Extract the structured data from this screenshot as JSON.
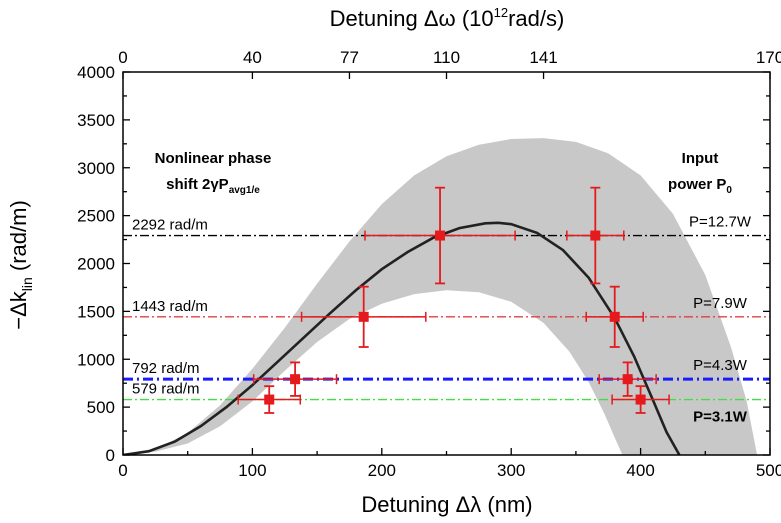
{
  "chart_data": {
    "type": "scatter",
    "xlabel_prefix": "Detuning ",
    "xlabel_symbol": "Δλ",
    "xlabel_unit": " (nm)",
    "top_xlabel_prefix": "Detuning ",
    "top_xlabel_symbol": "Δω",
    "top_xlabel_unit_start": " (10",
    "top_xlabel_unit_sup": "12",
    "top_xlabel_unit_end": "rad/s)",
    "ylabel_main": "−Δk",
    "ylabel_sub": "lin",
    "ylabel_unit": " (rad/m)",
    "xlim": [
      0,
      500
    ],
    "ylim": [
      0,
      4000
    ],
    "x_ticks": [
      0,
      100,
      200,
      300,
      400,
      500
    ],
    "y_ticks": [
      0,
      500,
      1000,
      1500,
      2000,
      2500,
      3000,
      3500,
      4000
    ],
    "top_ticks": [
      {
        "lambda": 0,
        "label": "0"
      },
      {
        "lambda": 100,
        "label": "40"
      },
      {
        "lambda": 175,
        "label": "77"
      },
      {
        "lambda": 250,
        "label": "110"
      },
      {
        "lambda": 325,
        "label": "141"
      },
      {
        "lambda": 500,
        "label": "170"
      }
    ],
    "theory_curve": [
      [
        0,
        0
      ],
      [
        20,
        40
      ],
      [
        40,
        140
      ],
      [
        60,
        300
      ],
      [
        80,
        500
      ],
      [
        100,
        730
      ],
      [
        120,
        980
      ],
      [
        140,
        1230
      ],
      [
        160,
        1480
      ],
      [
        180,
        1720
      ],
      [
        200,
        1940
      ],
      [
        220,
        2120
      ],
      [
        240,
        2270
      ],
      [
        260,
        2370
      ],
      [
        280,
        2420
      ],
      [
        290,
        2425
      ],
      [
        300,
        2410
      ],
      [
        320,
        2320
      ],
      [
        340,
        2140
      ],
      [
        360,
        1850
      ],
      [
        380,
        1430
      ],
      [
        395,
        1030
      ],
      [
        410,
        560
      ],
      [
        420,
        240
      ],
      [
        430,
        0
      ]
    ],
    "band_upper": [
      [
        0,
        0
      ],
      [
        25,
        60
      ],
      [
        50,
        230
      ],
      [
        75,
        520
      ],
      [
        100,
        900
      ],
      [
        125,
        1330
      ],
      [
        150,
        1790
      ],
      [
        175,
        2230
      ],
      [
        200,
        2620
      ],
      [
        225,
        2920
      ],
      [
        250,
        3120
      ],
      [
        275,
        3240
      ],
      [
        300,
        3300
      ],
      [
        325,
        3310
      ],
      [
        350,
        3270
      ],
      [
        375,
        3150
      ],
      [
        400,
        2920
      ],
      [
        425,
        2520
      ],
      [
        450,
        1880
      ],
      [
        470,
        1120
      ],
      [
        482,
        560
      ],
      [
        490,
        0
      ]
    ],
    "band_lower": [
      [
        0,
        0
      ],
      [
        25,
        35
      ],
      [
        50,
        120
      ],
      [
        75,
        300
      ],
      [
        100,
        560
      ],
      [
        125,
        880
      ],
      [
        150,
        1180
      ],
      [
        175,
        1420
      ],
      [
        200,
        1580
      ],
      [
        225,
        1680
      ],
      [
        250,
        1720
      ],
      [
        275,
        1700
      ],
      [
        300,
        1600
      ],
      [
        325,
        1380
      ],
      [
        345,
        1080
      ],
      [
        360,
        760
      ],
      [
        372,
        430
      ],
      [
        382,
        120
      ],
      [
        386,
        0
      ]
    ],
    "series": [
      {
        "x": 113,
        "y": 579,
        "xerr": 24,
        "yerr": 140
      },
      {
        "x": 133,
        "y": 792,
        "xerr": 32,
        "yerr": 175
      },
      {
        "x": 186,
        "y": 1443,
        "xerr": 48,
        "yerr": 315
      },
      {
        "x": 245,
        "y": 2292,
        "xerr": 58,
        "yerr": 500
      },
      {
        "x": 365,
        "y": 2292,
        "xerr": 22,
        "yerr": 500
      },
      {
        "x": 380,
        "y": 1443,
        "xerr": 22,
        "yerr": 315
      },
      {
        "x": 390,
        "y": 792,
        "xerr": 22,
        "yerr": 175
      },
      {
        "x": 400,
        "y": 579,
        "xerr": 22,
        "yerr": 140
      }
    ],
    "hlines": [
      {
        "y": 2292,
        "color": "#000000",
        "width": 1.3,
        "dash": "9,3,2,3",
        "value_label": "2292 rad/m",
        "power_label": "P=12.7W",
        "power_bold": false
      },
      {
        "y": 1443,
        "color": "#e04040",
        "width": 1.3,
        "dash": "9,3,2,3",
        "value_label": "1443 rad/m",
        "power_label": "P=7.9W",
        "power_bold": false
      },
      {
        "y": 792,
        "color": "#1a1aff",
        "width": 3,
        "dash": "10,4,2,4",
        "value_label": "792 rad/m",
        "power_label": "P=4.3W",
        "power_bold": false
      },
      {
        "y": 579,
        "color": "#44dd44",
        "width": 1.3,
        "dash": "9,3,2,3",
        "value_label": "579 rad/m",
        "power_label": "P=3.1W",
        "power_bold": true
      }
    ],
    "annotations": {
      "left_title_line1": "Nonlinear phase",
      "left_title_line2_main": "shift 2γP",
      "left_title_line2_sub": "avg1/e",
      "right_title_line1": "Input",
      "right_title_line2_main": "power P",
      "right_title_line2_sub": "0"
    },
    "colors": {
      "band": "#c8c8c8",
      "curve": "#222222",
      "marker": "#e41a1c",
      "errorbar": "#e41a1c"
    }
  }
}
